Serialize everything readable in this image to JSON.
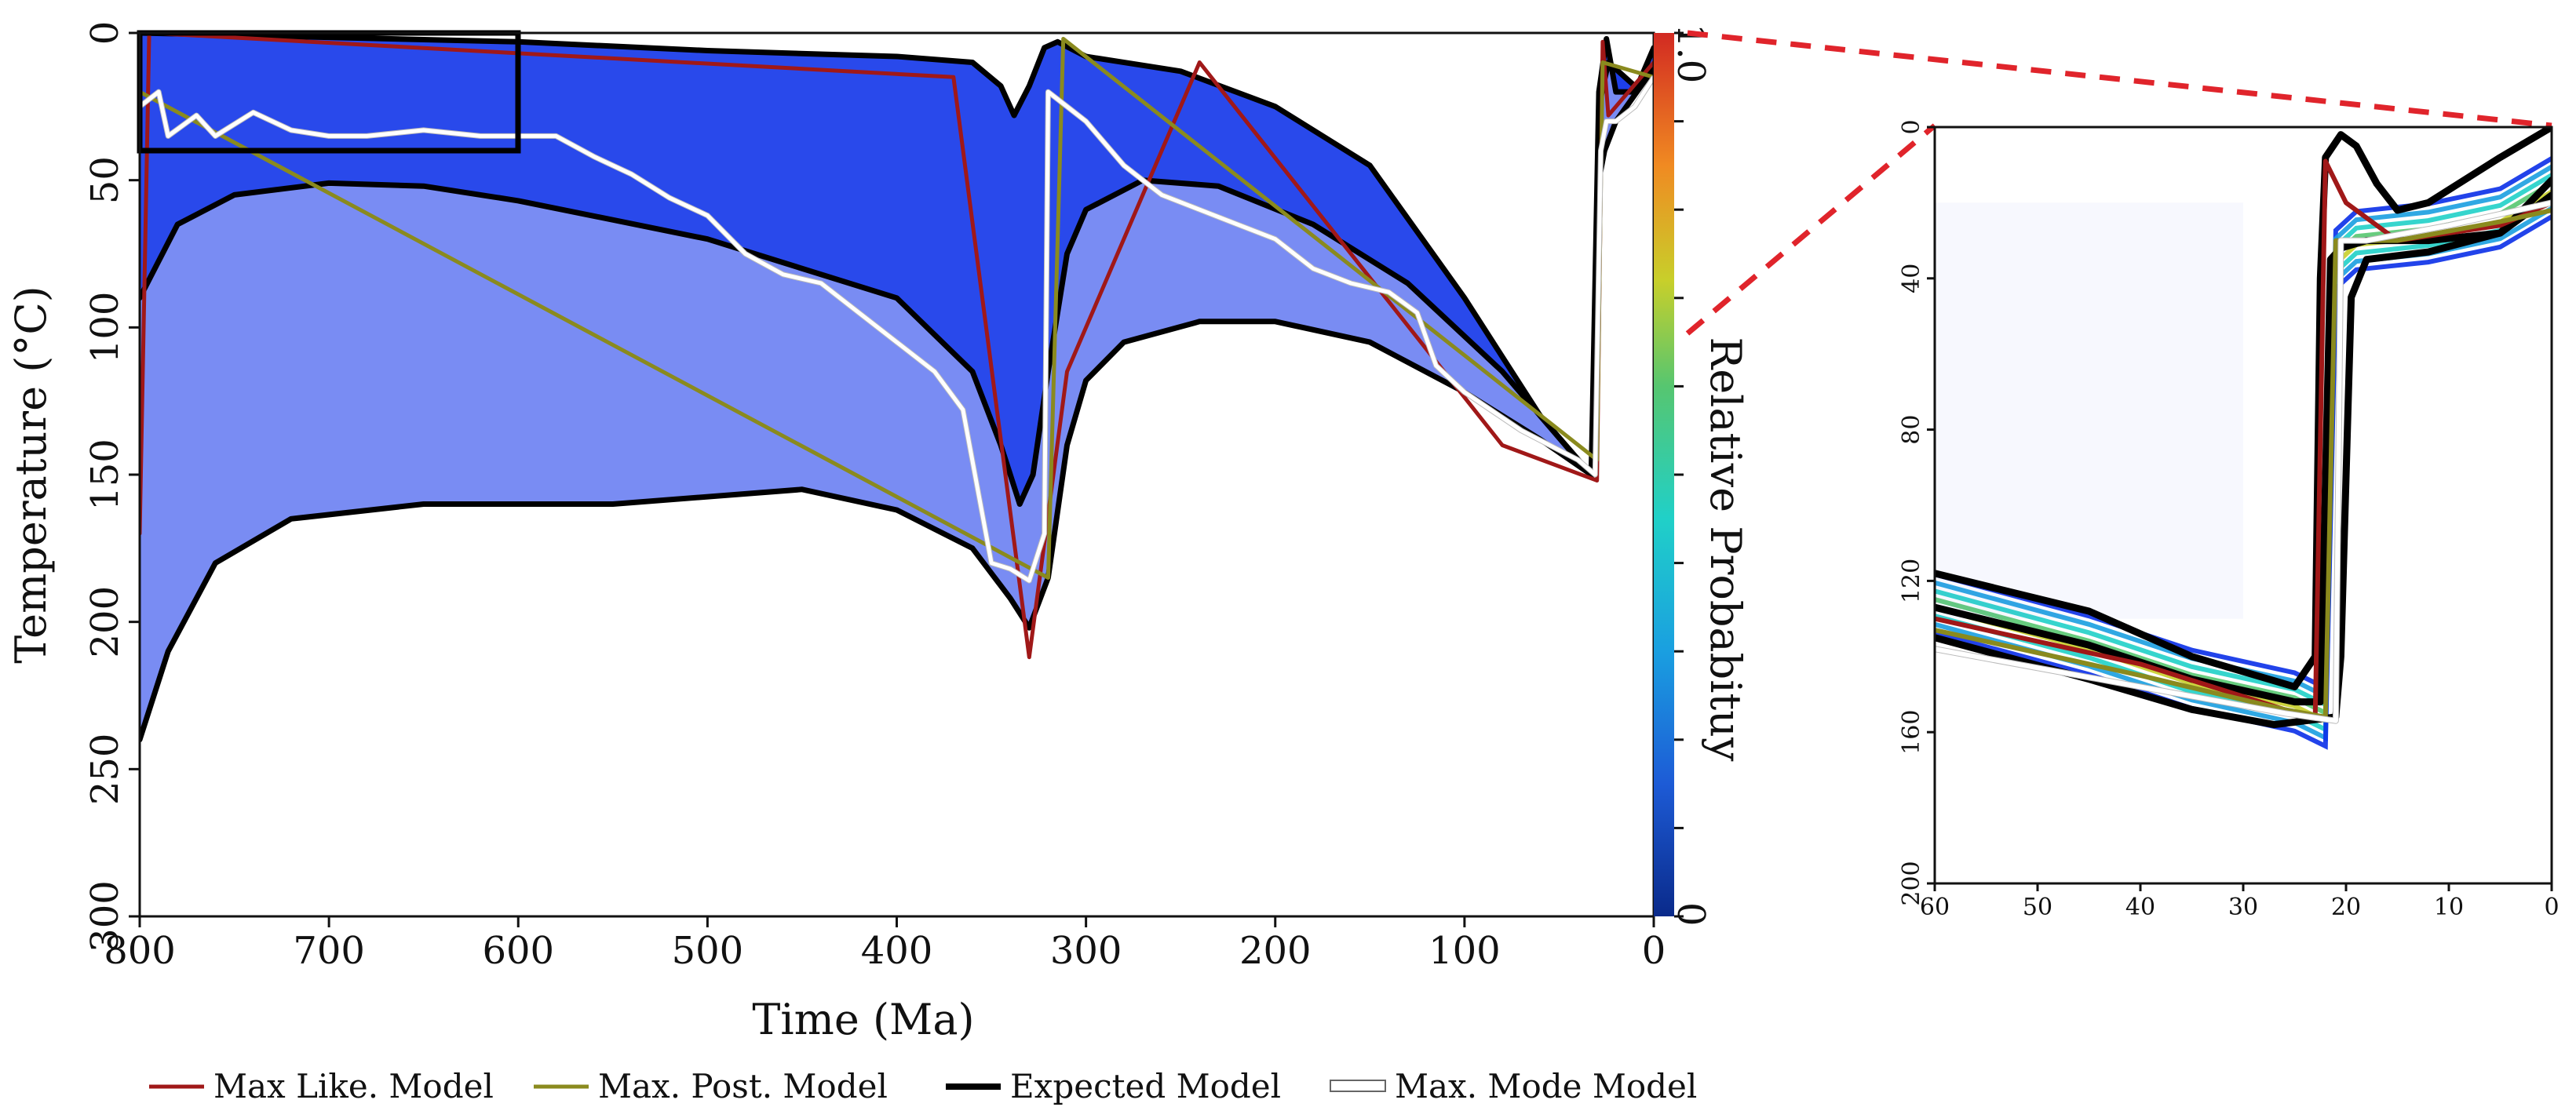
{
  "chart_data": [
    {
      "type": "line",
      "panel": "main",
      "xlabel": "Time (Ma)",
      "ylabel": "Temperature (°C)",
      "xlim": [
        800,
        0
      ],
      "ylim": [
        300,
        0
      ],
      "x_ticks": [
        800,
        700,
        600,
        500,
        400,
        300,
        200,
        100,
        0
      ],
      "y_ticks": [
        0,
        50,
        100,
        150,
        200,
        250,
        300
      ],
      "colorbar": {
        "label": "Relative Probabituy",
        "min": "0",
        "max": "1.0"
      },
      "zoom_box": {
        "x": [
          800,
          600
        ],
        "y": [
          0,
          37
        ]
      },
      "series": [
        {
          "name": "Max Like. Model",
          "color": "#a01818",
          "points": [
            [
              800,
              170
            ],
            [
              795,
              0
            ],
            [
              370,
              15
            ],
            [
              330,
              212
            ],
            [
              310,
              115
            ],
            [
              240,
              10
            ],
            [
              80,
              140
            ],
            [
              30,
              152
            ],
            [
              27,
              3
            ],
            [
              24,
              28
            ],
            [
              0,
              10
            ]
          ]
        },
        {
          "name": "Max. Post. Model",
          "color": "#8a8a1e",
          "points": [
            [
              800,
              20
            ],
            [
              320,
              185
            ],
            [
              312,
              2
            ],
            [
              30,
              145
            ],
            [
              27,
              10
            ],
            [
              0,
              15
            ]
          ]
        },
        {
          "name": "Expected Model (upper)",
          "color": "#000000",
          "points": [
            [
              800,
              0
            ],
            [
              600,
              3
            ],
            [
              500,
              6
            ],
            [
              400,
              8
            ],
            [
              360,
              10
            ],
            [
              345,
              18
            ],
            [
              338,
              28
            ],
            [
              330,
              18
            ],
            [
              322,
              5
            ],
            [
              315,
              3
            ],
            [
              300,
              8
            ],
            [
              250,
              13
            ],
            [
              200,
              25
            ],
            [
              150,
              45
            ],
            [
              100,
              90
            ],
            [
              60,
              130
            ],
            [
              33,
              150
            ],
            [
              29,
              20
            ],
            [
              25,
              2
            ],
            [
              20,
              20
            ],
            [
              10,
              20
            ],
            [
              0,
              5
            ]
          ]
        },
        {
          "name": "Expected Model (middle)",
          "color": "#000000",
          "points": [
            [
              800,
              90
            ],
            [
              780,
              65
            ],
            [
              750,
              55
            ],
            [
              700,
              51
            ],
            [
              650,
              52
            ],
            [
              600,
              57
            ],
            [
              500,
              70
            ],
            [
              400,
              90
            ],
            [
              360,
              115
            ],
            [
              345,
              140
            ],
            [
              335,
              160
            ],
            [
              328,
              150
            ],
            [
              320,
              115
            ],
            [
              310,
              75
            ],
            [
              300,
              60
            ],
            [
              270,
              50
            ],
            [
              230,
              52
            ],
            [
              180,
              65
            ],
            [
              130,
              85
            ],
            [
              80,
              115
            ],
            [
              40,
              145
            ],
            [
              32,
              150
            ],
            [
              29,
              25
            ],
            [
              24,
              10
            ],
            [
              10,
              18
            ],
            [
              0,
              12
            ]
          ]
        },
        {
          "name": "Expected Model (lower)",
          "color": "#000000",
          "points": [
            [
              800,
              240
            ],
            [
              785,
              210
            ],
            [
              760,
              180
            ],
            [
              720,
              165
            ],
            [
              650,
              160
            ],
            [
              550,
              160
            ],
            [
              450,
              155
            ],
            [
              400,
              162
            ],
            [
              360,
              175
            ],
            [
              340,
              192
            ],
            [
              330,
              202
            ],
            [
              320,
              185
            ],
            [
              310,
              140
            ],
            [
              300,
              118
            ],
            [
              280,
              105
            ],
            [
              240,
              98
            ],
            [
              200,
              98
            ],
            [
              150,
              105
            ],
            [
              100,
              122
            ],
            [
              60,
              138
            ],
            [
              33,
              150
            ],
            [
              29,
              50
            ],
            [
              26,
              40
            ],
            [
              20,
              30
            ],
            [
              0,
              12
            ]
          ]
        },
        {
          "name": "Max. Mode Model",
          "color": "#ffffff",
          "points": [
            [
              800,
              25
            ],
            [
              790,
              20
            ],
            [
              785,
              35
            ],
            [
              770,
              28
            ],
            [
              760,
              35
            ],
            [
              740,
              27
            ],
            [
              720,
              33
            ],
            [
              700,
              35
            ],
            [
              680,
              35
            ],
            [
              650,
              33
            ],
            [
              620,
              35
            ],
            [
              600,
              35
            ],
            [
              580,
              35
            ],
            [
              560,
              42
            ],
            [
              540,
              48
            ],
            [
              520,
              56
            ],
            [
              500,
              62
            ],
            [
              480,
              75
            ],
            [
              460,
              82
            ],
            [
              440,
              85
            ],
            [
              420,
              95
            ],
            [
              400,
              105
            ],
            [
              380,
              115
            ],
            [
              365,
              128
            ],
            [
              350,
              180
            ],
            [
              340,
              182
            ],
            [
              330,
              186
            ],
            [
              322,
              170
            ],
            [
              320,
              20
            ],
            [
              310,
              25
            ],
            [
              300,
              30
            ],
            [
              280,
              45
            ],
            [
              260,
              55
            ],
            [
              240,
              60
            ],
            [
              220,
              65
            ],
            [
              200,
              70
            ],
            [
              180,
              80
            ],
            [
              160,
              85
            ],
            [
              140,
              88
            ],
            [
              125,
              95
            ],
            [
              115,
              113
            ],
            [
              100,
              122
            ],
            [
              70,
              135
            ],
            [
              40,
              145
            ],
            [
              31,
              150
            ],
            [
              28,
              40
            ],
            [
              25,
              30
            ],
            [
              20,
              30
            ],
            [
              10,
              25
            ],
            [
              0,
              15
            ]
          ]
        }
      ]
    },
    {
      "type": "line",
      "panel": "inset",
      "xlim": [
        60,
        0
      ],
      "ylim": [
        200,
        0
      ],
      "x_ticks": [
        60,
        50,
        40,
        30,
        20,
        10,
        0
      ],
      "y_ticks": [
        0,
        40,
        80,
        120,
        160,
        200
      ],
      "series": [
        {
          "name": "Expected Model (upper)",
          "color": "#000000",
          "points": [
            [
              60,
              118
            ],
            [
              45,
              128
            ],
            [
              35,
              140
            ],
            [
              25,
              148
            ],
            [
              23,
              140
            ],
            [
              22.5,
              40
            ],
            [
              22,
              8
            ],
            [
              20.5,
              2
            ],
            [
              19,
              5
            ],
            [
              17,
              15
            ],
            [
              15,
              22
            ],
            [
              12,
              20
            ],
            [
              5,
              8
            ],
            [
              0,
              0
            ]
          ]
        },
        {
          "name": "Expected Model (middle)",
          "color": "#000000",
          "points": [
            [
              60,
              127
            ],
            [
              45,
              137
            ],
            [
              35,
              146
            ],
            [
              25,
              152
            ],
            [
              22.5,
              152
            ],
            [
              21.5,
              35
            ],
            [
              20.5,
              32
            ],
            [
              18,
              30
            ],
            [
              12,
              30
            ],
            [
              5,
              28
            ],
            [
              0,
              14
            ]
          ]
        },
        {
          "name": "Expected Model (lower)",
          "color": "#000000",
          "points": [
            [
              60,
              135
            ],
            [
              45,
              146
            ],
            [
              35,
              154
            ],
            [
              27,
              158
            ],
            [
              21,
              156
            ],
            [
              20.5,
              140
            ],
            [
              19.5,
              45
            ],
            [
              18,
              35
            ],
            [
              12,
              33
            ],
            [
              5,
              28
            ],
            [
              0,
              18
            ]
          ]
        },
        {
          "name": "Max Like. Model",
          "color": "#a01818",
          "points": [
            [
              60,
              130
            ],
            [
              40,
              142
            ],
            [
              26,
              154
            ],
            [
              23,
              156
            ],
            [
              22,
              9
            ],
            [
              20,
              20
            ],
            [
              15,
              30
            ],
            [
              5,
              26
            ],
            [
              0,
              20
            ]
          ]
        },
        {
          "name": "Max. Post. Model",
          "color": "#8a8a1e",
          "points": [
            [
              60,
              133
            ],
            [
              40,
              145
            ],
            [
              26,
              154
            ],
            [
              22,
              156
            ],
            [
              21,
              30
            ],
            [
              15,
              30
            ],
            [
              5,
              25
            ],
            [
              0,
              22
            ]
          ]
        },
        {
          "name": "Max. Mode Model",
          "color": "#ffffff",
          "points": [
            [
              60,
              138
            ],
            [
              40,
              148
            ],
            [
              26,
              155
            ],
            [
              21,
              157
            ],
            [
              20.5,
              30
            ],
            [
              18,
              30
            ],
            [
              10,
              26
            ],
            [
              0,
              20
            ]
          ]
        }
      ]
    }
  ],
  "legend": {
    "items": [
      {
        "label": "Max Like. Model",
        "color": "#a01818"
      },
      {
        "label": "Max. Post. Model",
        "color": "#8a8a1e"
      },
      {
        "label": "Expected Model",
        "color": "#000000"
      },
      {
        "label": "Max. Mode Model",
        "color": "#ffffff"
      }
    ]
  },
  "colors": {
    "cloud": "#0a2fe8",
    "zoom_connector": "#e0242b",
    "axis": "#111111"
  }
}
